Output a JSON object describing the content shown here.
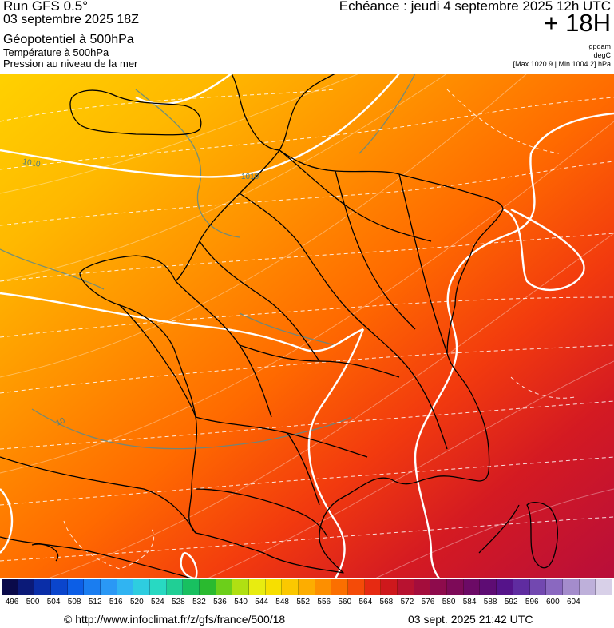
{
  "header": {
    "run": "Run GFS 0.5°",
    "run_date": "03 septembre 2025 18Z",
    "param1": "Géopotentiel à 500hPa",
    "param2": "Température à 500hPa",
    "param3": "Pression au niveau de la mer",
    "echeance": "Echéance : jeudi 4 septembre 2025 12h UTC",
    "offset": "+ 18H",
    "unit1": "gpdam",
    "unit2": "degC",
    "minmax": "[Max 1020.9 | Min 1004.2] hPa"
  },
  "map": {
    "isobar_labels": [
      "1010",
      "1010",
      "10"
    ]
  },
  "colorbar": {
    "labels": [
      "496",
      "500",
      "504",
      "508",
      "512",
      "516",
      "520",
      "524",
      "528",
      "532",
      "536",
      "540",
      "544",
      "548",
      "552",
      "556",
      "560",
      "564",
      "568",
      "572",
      "576",
      "580",
      "584",
      "588",
      "592",
      "596",
      "600",
      "604"
    ],
    "colors": [
      "#0a0a4a",
      "#0b1a78",
      "#0a2ea8",
      "#0a45cc",
      "#0c5ee6",
      "#1a7df0",
      "#2a98f5",
      "#30b4f2",
      "#2ecde0",
      "#28d9c2",
      "#20cf95",
      "#18c060",
      "#2aba2f",
      "#6ccf1a",
      "#b0e012",
      "#e8ec10",
      "#f7df00",
      "#fbc800",
      "#fdad00",
      "#fd8f00",
      "#fb6f00",
      "#f44b08",
      "#e62a12",
      "#ce181c",
      "#b81230",
      "#a40d3c",
      "#8e0b4c",
      "#7d0a58",
      "#6c0a66",
      "#5e0c74",
      "#55138a",
      "#5f2ca0",
      "#7248b0",
      "#8a68c0",
      "#a48ccc",
      "#beb0da",
      "#d8d0e8"
    ]
  },
  "footer": {
    "url": "© http://www.infoclimat.fr/z/gfs/france/500/18",
    "timestamp": "03 sept. 2025 21:42 UTC"
  }
}
